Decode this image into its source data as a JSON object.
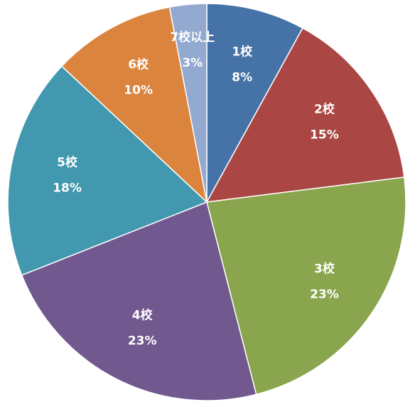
{
  "chart_data": {
    "type": "pie",
    "categories": [
      "1校",
      "2校",
      "3校",
      "4校",
      "5校",
      "6校",
      "7校以上"
    ],
    "values": [
      8,
      15,
      23,
      23,
      18,
      10,
      3
    ],
    "value_labels": [
      "8%",
      "15%",
      "23%",
      "23%",
      "18%",
      "10%",
      "3%"
    ],
    "colors": [
      "#4572a7",
      "#aa4643",
      "#89a54e",
      "#71588f",
      "#4198af",
      "#db843d",
      "#93a9cf"
    ]
  }
}
